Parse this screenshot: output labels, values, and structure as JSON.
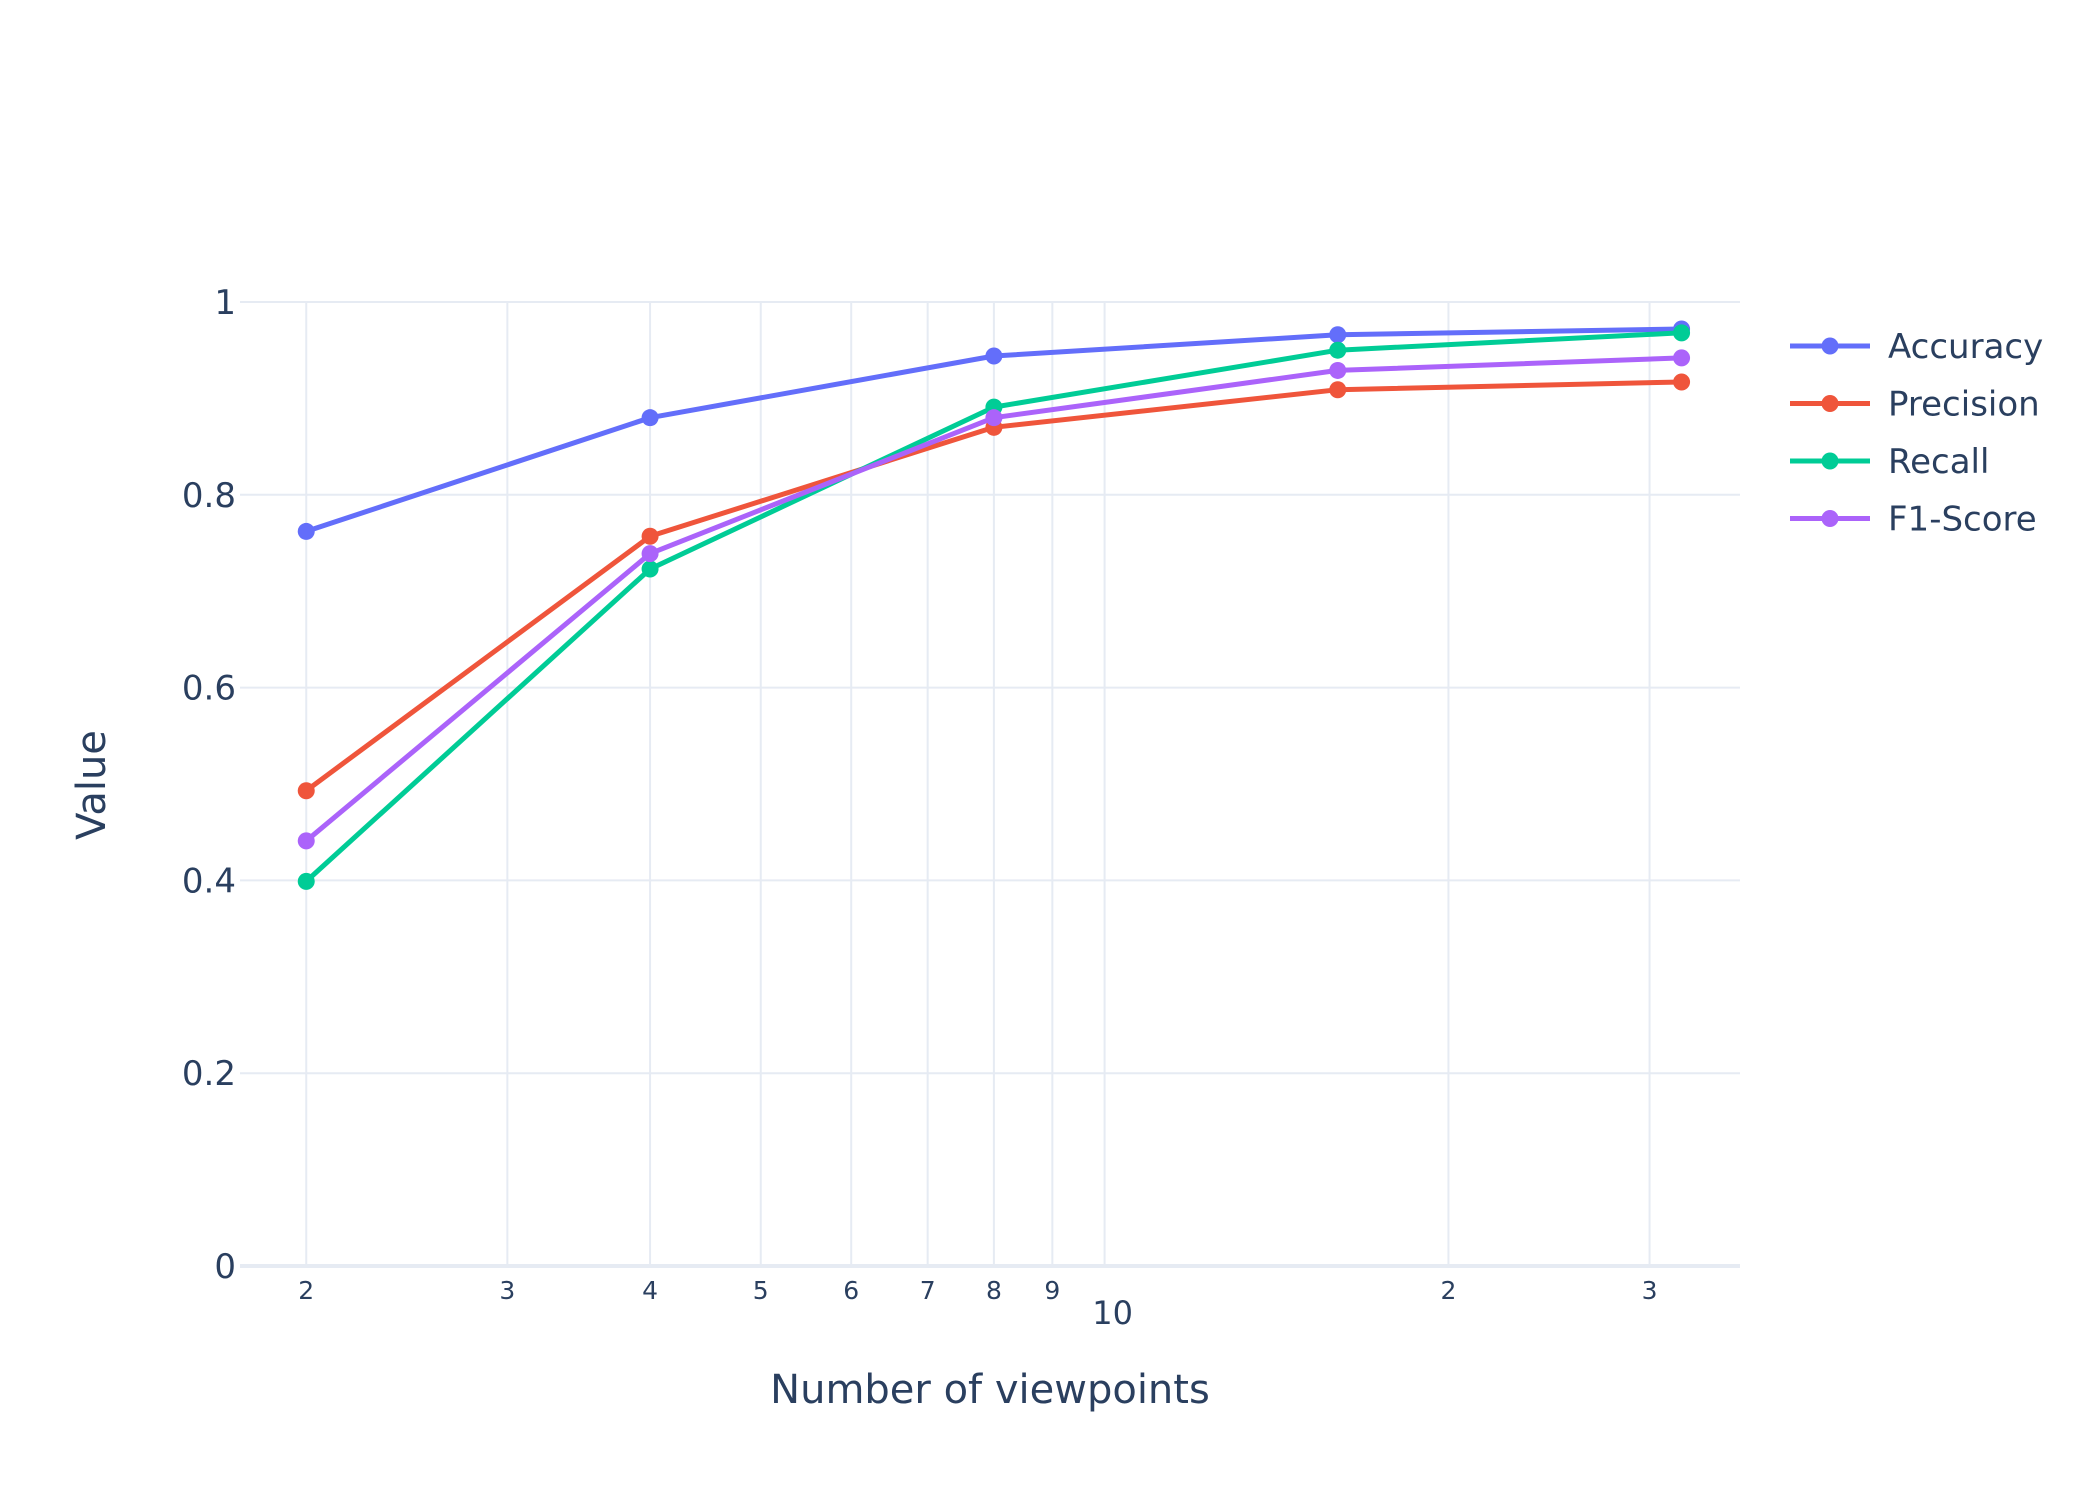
{
  "chart_data": {
    "type": "line",
    "xlabel": "Number of viewpoints",
    "ylabel": "Value",
    "x_scale": "log",
    "xlim": [
      1.75,
      36
    ],
    "ylim": [
      0,
      1
    ],
    "x_major_ticks": [
      {
        "value": 10,
        "label": "10"
      }
    ],
    "x_minor_ticks": [
      {
        "value": 2,
        "label": "2"
      },
      {
        "value": 3,
        "label": "3"
      },
      {
        "value": 4,
        "label": "4"
      },
      {
        "value": 5,
        "label": "5"
      },
      {
        "value": 6,
        "label": "6"
      },
      {
        "value": 7,
        "label": "7"
      },
      {
        "value": 8,
        "label": "8"
      },
      {
        "value": 9,
        "label": "9"
      },
      {
        "value": 20,
        "label": "2"
      },
      {
        "value": 30,
        "label": "3"
      }
    ],
    "y_ticks": [
      {
        "value": 0,
        "label": "0"
      },
      {
        "value": 0.2,
        "label": "0.2"
      },
      {
        "value": 0.4,
        "label": "0.4"
      },
      {
        "value": 0.6,
        "label": "0.6"
      },
      {
        "value": 0.8,
        "label": "0.8"
      },
      {
        "value": 1,
        "label": "1"
      }
    ],
    "x": [
      2,
      4,
      8,
      16,
      32
    ],
    "series": [
      {
        "name": "Accuracy",
        "color": "#636efa",
        "values": [
          0.762,
          0.88,
          0.944,
          0.966,
          0.972
        ]
      },
      {
        "name": "Precision",
        "color": "#ef553b",
        "values": [
          0.493,
          0.757,
          0.87,
          0.909,
          0.917
        ]
      },
      {
        "name": "Recall",
        "color": "#00cc96",
        "values": [
          0.399,
          0.723,
          0.891,
          0.95,
          0.968
        ]
      },
      {
        "name": "F1-Score",
        "color": "#ab63fa",
        "values": [
          0.441,
          0.739,
          0.88,
          0.929,
          0.942
        ]
      }
    ],
    "grid": true,
    "legend_position": "right"
  }
}
